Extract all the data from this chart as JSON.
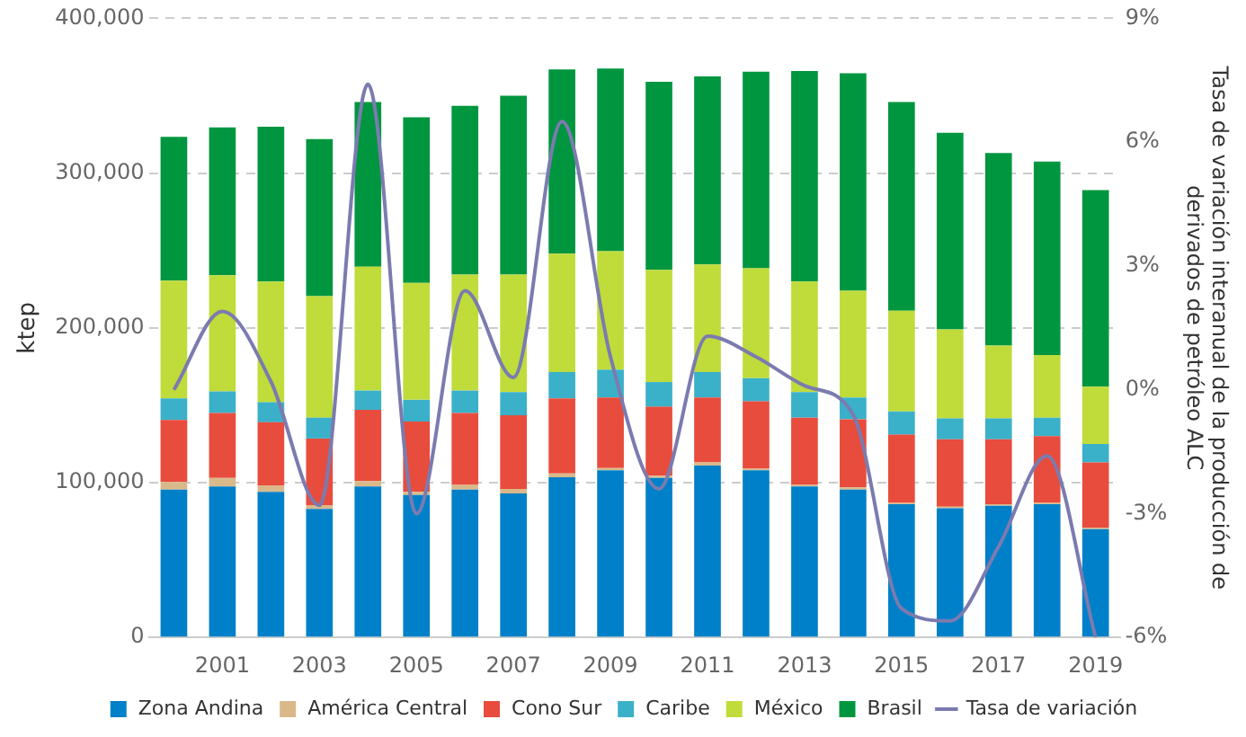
{
  "chart_data": {
    "type": "bar",
    "stacked": true,
    "ylabel": "ktep",
    "y2label": "Tasa de variación interanual de la producción de derivados de petróleo ALC",
    "categories": [
      null,
      "2001",
      null,
      "2003",
      null,
      "2005",
      null,
      "2007",
      null,
      "2009",
      null,
      "2011",
      null,
      "2013",
      null,
      "2015",
      null,
      "2017",
      null,
      "2019"
    ],
    "series": [
      {
        "name": "Zona Andina",
        "color": "#0080c8",
        "values": [
          95500,
          97500,
          94000,
          83000,
          97500,
          92000,
          95500,
          93000,
          103500,
          108000,
          103000,
          111000,
          108000,
          97500,
          95500,
          86000,
          83500,
          85000,
          86000,
          70000
        ]
      },
      {
        "name": "América Central",
        "color": "#d9b98a",
        "values": [
          5000,
          5500,
          4000,
          2500,
          3500,
          2000,
          3000,
          3000,
          2500,
          1500,
          1500,
          2000,
          1000,
          1000,
          1500,
          1000,
          1000,
          1000,
          1000,
          1000
        ]
      },
      {
        "name": "Cono Sur",
        "color": "#e84c3d",
        "values": [
          40000,
          42000,
          41000,
          43000,
          46000,
          45500,
          46500,
          47500,
          48500,
          45500,
          44500,
          42000,
          43500,
          43500,
          44000,
          44000,
          43500,
          42000,
          43000,
          42000
        ]
      },
      {
        "name": "Caribe",
        "color": "#3bb0c9",
        "values": [
          14000,
          14000,
          13000,
          13500,
          12500,
          14000,
          14500,
          15000,
          17000,
          18000,
          16000,
          16500,
          15000,
          16500,
          14000,
          15000,
          13500,
          13500,
          12000,
          12000
        ]
      },
      {
        "name": "México",
        "color": "#c0dc3a",
        "values": [
          76000,
          75000,
          78000,
          78500,
          80000,
          75500,
          75000,
          76000,
          76500,
          76500,
          72500,
          69500,
          71000,
          71500,
          69000,
          65000,
          57500,
          47000,
          40500,
          37000
        ]
      },
      {
        "name": "Brasil",
        "color": "#00963f",
        "values": [
          93000,
          95500,
          100000,
          101500,
          106500,
          107000,
          109000,
          115500,
          119000,
          118000,
          121500,
          121500,
          127000,
          136000,
          140500,
          135000,
          127000,
          124500,
          125000,
          127000
        ]
      },
      {
        "name": "Tasa de variación",
        "type": "line",
        "axis": "y2",
        "color": "#7b7bb0",
        "values": [
          0.0,
          1.9,
          0.2,
          -2.8,
          7.4,
          -3.0,
          2.4,
          0.3,
          6.5,
          0.8,
          -2.4,
          1.3,
          0.8,
          0.1,
          -0.6,
          -5.3,
          -5.6,
          -3.8,
          -1.6,
          -6.0
        ]
      }
    ],
    "ylim": [
      0,
      400000
    ],
    "yticks": [
      0,
      {
        "value": 100000,
        "label": "100,000"
      },
      {
        "value": 200000,
        "label": "200,000"
      },
      {
        "value": 300000,
        "label": "300,000"
      },
      {
        "value": 400000,
        "label": "400,000"
      }
    ],
    "y2lim": [
      -6,
      9
    ],
    "y2ticks": [
      {
        "value": -6,
        "label": "-6%"
      },
      {
        "value": -3,
        "label": "-3%"
      },
      {
        "value": 0,
        "label": "0%"
      },
      {
        "value": 3,
        "label": "3%"
      },
      {
        "value": 6,
        "label": "6%"
      },
      {
        "value": 9,
        "label": "9%"
      }
    ],
    "grid": "y",
    "legend": "bottom",
    "marker": "none",
    "line_style": "solid"
  }
}
